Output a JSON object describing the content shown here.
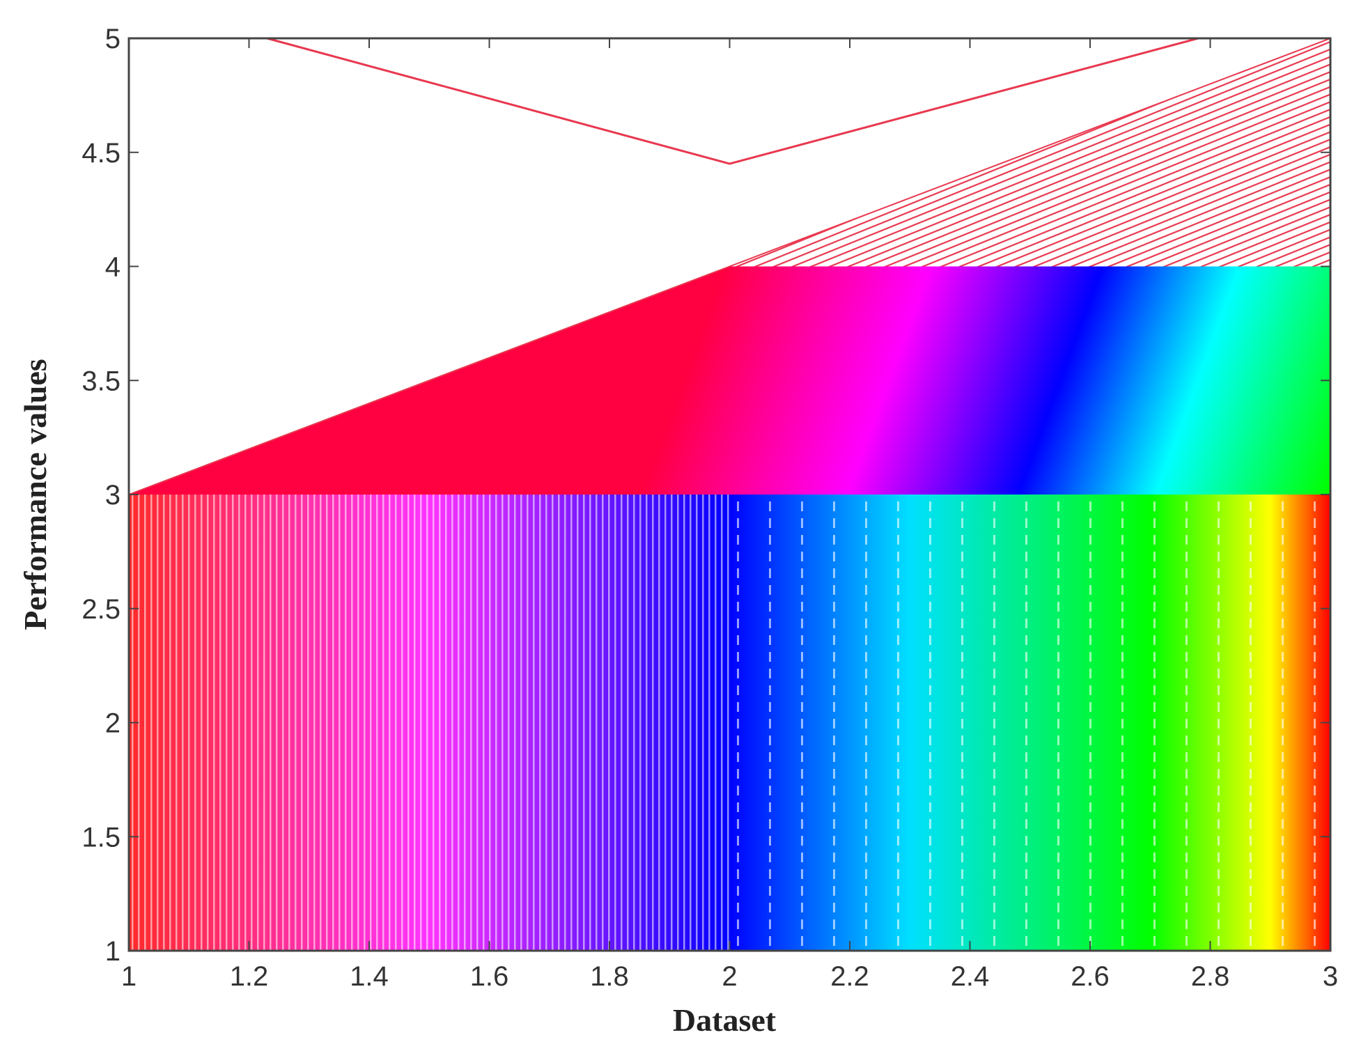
{
  "chart_data": {
    "type": "area",
    "xlabel": "Dataset",
    "ylabel": "Performance values",
    "xlim": [
      1,
      3
    ],
    "ylim": [
      1,
      5
    ],
    "x_ticks": [
      "1",
      "1.2",
      "1.4",
      "1.6",
      "1.8",
      "2",
      "2.2",
      "2.4",
      "2.6",
      "2.8",
      "3"
    ],
    "y_ticks": [
      "1",
      "1.5",
      "2",
      "2.5",
      "3",
      "3.5",
      "4",
      "4.5",
      "5"
    ],
    "grid": false,
    "legend": "none",
    "x": [
      1,
      2,
      3
    ],
    "series": [
      {
        "values": [
          3,
          3,
          3
        ],
        "fill": "gradient-hatched"
      },
      {
        "values": [
          3,
          4,
          4
        ],
        "fill": "gradient-solid"
      },
      {
        "values": [
          3,
          4,
          5
        ],
        "fill": "red-hatched"
      },
      {
        "x": [
          1.23,
          2,
          2.78
        ],
        "values": [
          5,
          4.45,
          5
        ],
        "fill": "none",
        "line_color": "#e8384f"
      }
    ],
    "colormap": [
      "#ff0000",
      "#ff00ff",
      "#0000ff",
      "#00ffff",
      "#00ff00",
      "#ffff00",
      "#ff0000"
    ],
    "hatch_color": "#e8384f"
  }
}
